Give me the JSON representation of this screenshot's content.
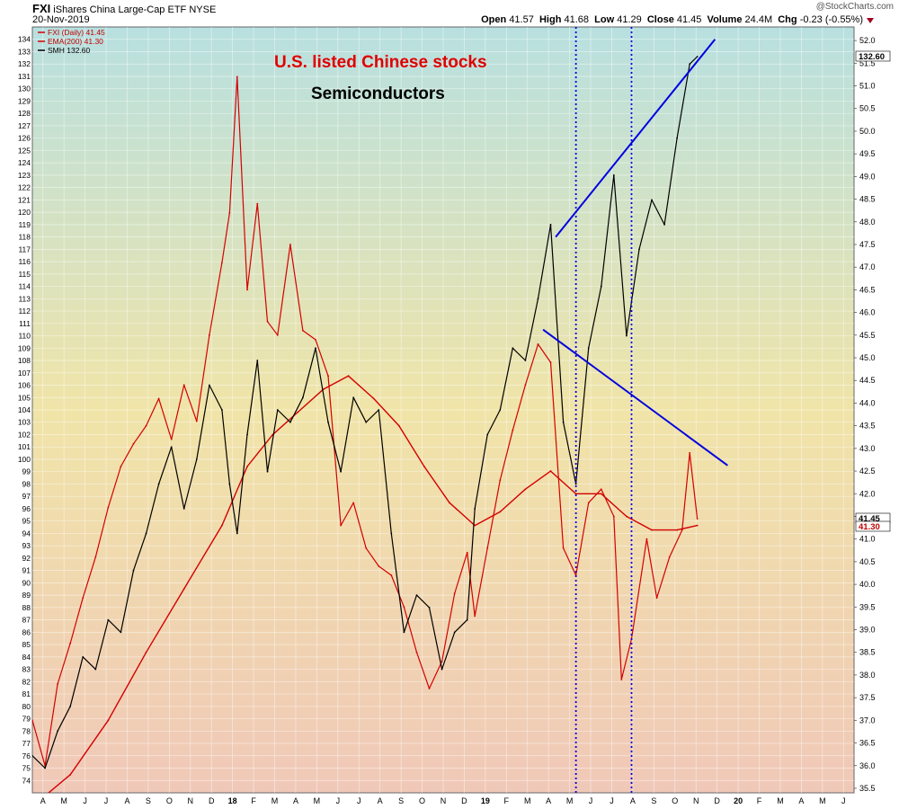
{
  "header": {
    "symbol": "FXI",
    "name": "iShares China Large-Cap ETF",
    "exchange": "NYSE",
    "date": "20-Nov-2019",
    "open_label": "Open",
    "open": "41.57",
    "high_label": "High",
    "high": "41.68",
    "low_label": "Low",
    "low": "41.29",
    "close_label": "Close",
    "close": "41.45",
    "volume_label": "Volume",
    "volume": "24.4M",
    "chg_label": "Chg",
    "chg": "-0.23 (-0.55%)",
    "watermark": "@StockCharts.com"
  },
  "annotations": {
    "title_red": "U.S. listed Chinese stocks",
    "title_black": "Semiconductors"
  },
  "colors": {
    "fxi": "#d40000",
    "ema": "#d40000",
    "smh": "#000000",
    "trendline": "#0000e0",
    "bg_top": "#b8e0e0",
    "bg_mid": "#f0e4a8",
    "bg_bottom": "#f0c8b8"
  },
  "chart_data": {
    "type": "line",
    "legend": [
      {
        "key": "fxi",
        "text": "FXI (Daily) 41.45"
      },
      {
        "key": "ema",
        "text": "EMA(200) 41.30"
      },
      {
        "key": "smh",
        "text": "SMH 132.60"
      }
    ],
    "legend_position": "top-left",
    "grid": true,
    "x_labels": [
      "A",
      "M",
      "J",
      "J",
      "A",
      "S",
      "O",
      "N",
      "D",
      "18",
      "F",
      "M",
      "A",
      "M",
      "J",
      "J",
      "A",
      "S",
      "O",
      "N",
      "D",
      "19",
      "F",
      "M",
      "A",
      "M",
      "J",
      "J",
      "A",
      "S",
      "O",
      "N",
      "D",
      "20",
      "F",
      "M",
      "A",
      "M",
      "J"
    ],
    "x_range": [
      2017.25,
      2020.5
    ],
    "left_axis": {
      "series": "smh",
      "min": 73,
      "max": 135,
      "ticks": [
        74,
        75,
        76,
        77,
        78,
        79,
        80,
        81,
        82,
        83,
        84,
        85,
        86,
        87,
        88,
        89,
        90,
        91,
        92,
        93,
        94,
        95,
        96,
        97,
        98,
        99,
        100,
        101,
        102,
        103,
        104,
        105,
        106,
        107,
        108,
        109,
        110,
        111,
        112,
        113,
        114,
        115,
        116,
        117,
        118,
        119,
        120,
        121,
        122,
        123,
        124,
        125,
        126,
        127,
        128,
        129,
        130,
        131,
        132,
        133,
        134
      ]
    },
    "right_axis": {
      "series": "fxi",
      "min": 35.4,
      "max": 52.3,
      "ticks": [
        "35.5",
        "36.0",
        "36.5",
        "37.0",
        "37.5",
        "38.0",
        "38.5",
        "39.0",
        "39.5",
        "40.0",
        "40.5",
        "41.0",
        "41.5",
        "42.0",
        "42.5",
        "43.0",
        "43.5",
        "44.0",
        "44.5",
        "45.0",
        "45.5",
        "46.0",
        "46.5",
        "47.0",
        "47.5",
        "48.0",
        "48.5",
        "49.0",
        "49.5",
        "50.0",
        "50.5",
        "51.0",
        "51.5",
        "52.0"
      ]
    },
    "price_tags": [
      {
        "text": "132.60",
        "axis": "right_smh",
        "value": 132.6
      },
      {
        "text": "41.45",
        "axis": "right",
        "value": 41.45
      },
      {
        "text": "41.30",
        "axis": "right",
        "value": 41.3
      }
    ],
    "series": [
      {
        "name": "FXI (Daily) 41.45",
        "axis": "right",
        "x": [
          2017.25,
          2017.3,
          2017.35,
          2017.4,
          2017.45,
          2017.5,
          2017.55,
          2017.6,
          2017.65,
          2017.7,
          2017.75,
          2017.8,
          2017.85,
          2017.9,
          2017.95,
          2018.0,
          2018.03,
          2018.06,
          2018.1,
          2018.14,
          2018.18,
          2018.22,
          2018.27,
          2018.32,
          2018.37,
          2018.42,
          2018.47,
          2018.52,
          2018.57,
          2018.62,
          2018.67,
          2018.72,
          2018.77,
          2018.82,
          2018.87,
          2018.92,
          2018.97,
          2019.0,
          2019.05,
          2019.1,
          2019.15,
          2019.2,
          2019.25,
          2019.3,
          2019.35,
          2019.4,
          2019.45,
          2019.5,
          2019.55,
          2019.58,
          2019.62,
          2019.68,
          2019.72,
          2019.77,
          2019.82,
          2019.85,
          2019.88
        ],
        "values": [
          37.0,
          36.0,
          37.8,
          38.7,
          39.7,
          40.6,
          41.7,
          42.6,
          43.1,
          43.5,
          44.1,
          43.2,
          44.4,
          43.6,
          45.5,
          47.1,
          48.2,
          51.2,
          46.5,
          48.4,
          45.8,
          45.5,
          47.5,
          45.6,
          45.4,
          44.6,
          41.3,
          41.8,
          40.8,
          40.4,
          40.2,
          39.5,
          38.5,
          37.7,
          38.3,
          39.8,
          40.7,
          39.3,
          40.8,
          42.3,
          43.4,
          44.4,
          45.3,
          44.9,
          40.8,
          40.2,
          41.8,
          42.1,
          41.5,
          37.9,
          38.8,
          41.0,
          39.7,
          40.6,
          41.2,
          42.9,
          41.45
        ]
      },
      {
        "name": "EMA(200) 41.30",
        "axis": "right",
        "x": [
          2017.25,
          2017.4,
          2017.55,
          2017.7,
          2017.85,
          2018.0,
          2018.1,
          2018.2,
          2018.3,
          2018.4,
          2018.5,
          2018.6,
          2018.7,
          2018.8,
          2018.9,
          2019.0,
          2019.1,
          2019.2,
          2019.3,
          2019.4,
          2019.5,
          2019.6,
          2019.7,
          2019.8,
          2019.88
        ],
        "values": [
          35.1,
          35.8,
          37.0,
          38.5,
          39.9,
          41.3,
          42.6,
          43.3,
          43.8,
          44.3,
          44.6,
          44.1,
          43.5,
          42.6,
          41.8,
          41.3,
          41.6,
          42.1,
          42.5,
          42.0,
          42.0,
          41.5,
          41.2,
          41.2,
          41.3
        ]
      },
      {
        "name": "SMH 132.60",
        "axis": "left",
        "x": [
          2017.25,
          2017.3,
          2017.35,
          2017.4,
          2017.45,
          2017.5,
          2017.55,
          2017.6,
          2017.65,
          2017.7,
          2017.75,
          2017.8,
          2017.85,
          2017.9,
          2017.95,
          2018.0,
          2018.03,
          2018.06,
          2018.1,
          2018.14,
          2018.18,
          2018.22,
          2018.27,
          2018.32,
          2018.37,
          2018.42,
          2018.47,
          2018.52,
          2018.57,
          2018.62,
          2018.67,
          2018.72,
          2018.77,
          2018.82,
          2018.87,
          2018.92,
          2018.97,
          2019.0,
          2019.05,
          2019.1,
          2019.15,
          2019.2,
          2019.25,
          2019.3,
          2019.35,
          2019.4,
          2019.45,
          2019.5,
          2019.55,
          2019.6,
          2019.65,
          2019.7,
          2019.75,
          2019.8,
          2019.85,
          2019.88
        ],
        "values": [
          76,
          75,
          78,
          80,
          84,
          83,
          87,
          86,
          91,
          94,
          98,
          101,
          96,
          100,
          106,
          104,
          98,
          94,
          102,
          108,
          99,
          104,
          103,
          105,
          109,
          103,
          99,
          105,
          103,
          104,
          94,
          86,
          89,
          88,
          83,
          86,
          87,
          96,
          102,
          104,
          109,
          108,
          113,
          119,
          103,
          98,
          109,
          114,
          123,
          110,
          117,
          121,
          119,
          126,
          132,
          132.6
        ]
      }
    ],
    "trendlines": [
      {
        "axis": "left",
        "points": [
          [
            2019.32,
            118
          ],
          [
            2019.95,
            134
          ]
        ]
      },
      {
        "axis": "left",
        "points": [
          [
            2019.27,
            110.5
          ],
          [
            2020.0,
            99.5
          ]
        ]
      }
    ],
    "vlines": [
      2019.4,
      2019.62
    ]
  }
}
